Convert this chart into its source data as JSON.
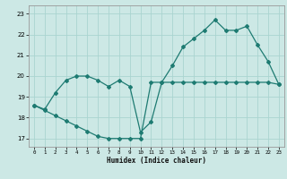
{
  "xlabel": "Humidex (Indice chaleur)",
  "background_color": "#cce8e5",
  "grid_color": "#aad4d0",
  "line_color": "#1e7b72",
  "x_ticks": [
    0,
    1,
    2,
    3,
    4,
    5,
    6,
    7,
    8,
    9,
    10,
    11,
    12,
    13,
    14,
    15,
    16,
    17,
    18,
    19,
    20,
    21,
    22,
    23
  ],
  "ylim": [
    16.6,
    23.4
  ],
  "xlim": [
    -0.5,
    23.5
  ],
  "yticks": [
    17,
    18,
    19,
    20,
    21,
    22,
    23
  ],
  "line1_x": [
    0,
    1,
    2,
    3,
    4,
    5,
    6,
    7,
    8,
    9,
    10,
    11,
    12,
    13,
    14,
    15,
    16,
    17,
    18,
    19,
    20,
    21,
    22,
    23
  ],
  "line1_y": [
    18.6,
    18.4,
    19.2,
    19.8,
    20.0,
    20.0,
    19.8,
    19.5,
    19.8,
    19.5,
    17.3,
    17.8,
    19.7,
    20.5,
    21.4,
    21.8,
    22.2,
    22.7,
    22.2,
    22.2,
    22.4,
    21.5,
    20.7,
    19.6
  ],
  "line2_x": [
    0,
    1,
    2,
    3,
    4,
    5,
    6,
    7,
    8,
    9,
    10,
    11,
    12,
    13,
    14,
    15,
    16,
    17,
    18,
    19,
    20,
    21,
    22,
    23
  ],
  "line2_y": [
    18.6,
    18.35,
    18.1,
    17.85,
    17.6,
    17.35,
    17.1,
    17.0,
    17.0,
    17.0,
    17.0,
    19.7,
    19.7,
    19.7,
    19.7,
    19.7,
    19.7,
    19.7,
    19.7,
    19.7,
    19.7,
    19.7,
    19.7,
    19.6
  ]
}
